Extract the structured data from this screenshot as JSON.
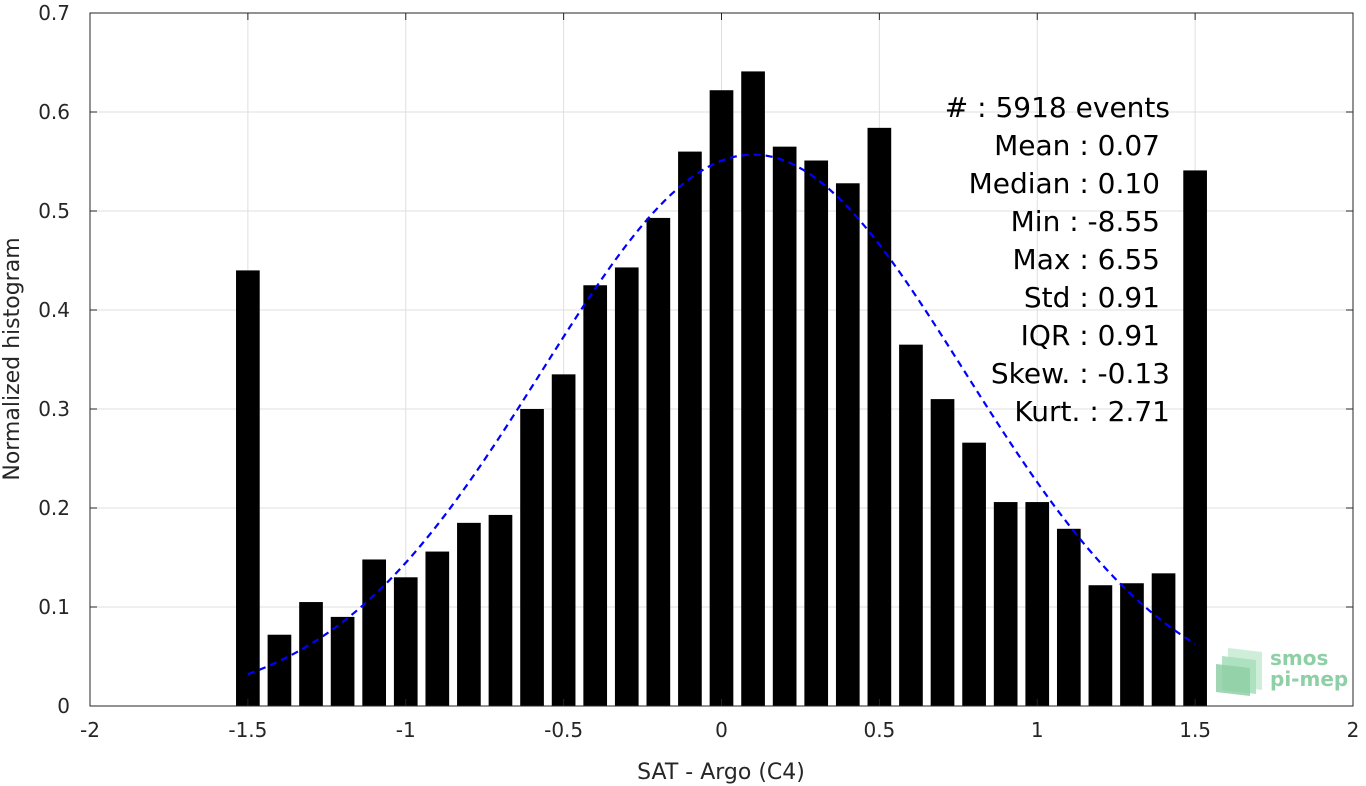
{
  "chart_data": {
    "type": "bar",
    "xlabel": "SAT - Argo (C4)",
    "ylabel": "Normalized histogram",
    "xlim": [
      -2,
      2
    ],
    "ylim": [
      0,
      0.7
    ],
    "xticks": [
      -2,
      -1.5,
      -1,
      -0.5,
      0,
      0.5,
      1,
      1.5,
      2
    ],
    "yticks": [
      0,
      0.1,
      0.2,
      0.3,
      0.4,
      0.5,
      0.6,
      0.7
    ],
    "xtick_labels": [
      "-2",
      "-1.5",
      "-1",
      "-0.5",
      "0",
      "0.5",
      "1",
      "1.5",
      "2"
    ],
    "ytick_labels": [
      "0",
      "0.1",
      "0.2",
      "0.3",
      "0.4",
      "0.5",
      "0.6",
      "0.7"
    ],
    "grid": true,
    "bar_color": "#000000",
    "bins": [
      -1.5,
      -1.4,
      -1.3,
      -1.2,
      -1.1,
      -1.0,
      -0.9,
      -0.8,
      -0.7,
      -0.6,
      -0.5,
      -0.4,
      -0.3,
      -0.2,
      -0.1,
      0.0,
      0.1,
      0.2,
      0.3,
      0.4,
      0.5,
      0.6,
      0.7,
      0.8,
      0.9,
      1.0,
      1.1,
      1.2,
      1.3,
      1.4,
      1.5
    ],
    "values": [
      0.44,
      0.072,
      0.105,
      0.09,
      0.148,
      0.13,
      0.156,
      0.185,
      0.193,
      0.3,
      0.335,
      0.425,
      0.443,
      0.493,
      0.56,
      0.622,
      0.641,
      0.565,
      0.551,
      0.528,
      0.584,
      0.365,
      0.31,
      0.266,
      0.206,
      0.206,
      0.179,
      0.122,
      0.124,
      0.134,
      0.541
    ],
    "fit_curve": {
      "style": "dashed",
      "color": "#0000ff",
      "mean": 0.1,
      "peak": 0.557,
      "std": 0.67,
      "x_range": [
        -1.5,
        1.5
      ]
    }
  },
  "stats": {
    "count": "#  : 5918 events",
    "mean": "Mean : 0.07",
    "median": "Median : 0.10",
    "min": "Min : -8.55",
    "max": "Max : 6.55",
    "std": "Std : 0.91",
    "iqr": "IQR : 0.91",
    "skew": "Skew. : -0.13",
    "kurt": "Kurt. : 2.71"
  },
  "logo": {
    "line1": "smos",
    "line2": "pi-mep",
    "color": "#8fcfa6"
  }
}
